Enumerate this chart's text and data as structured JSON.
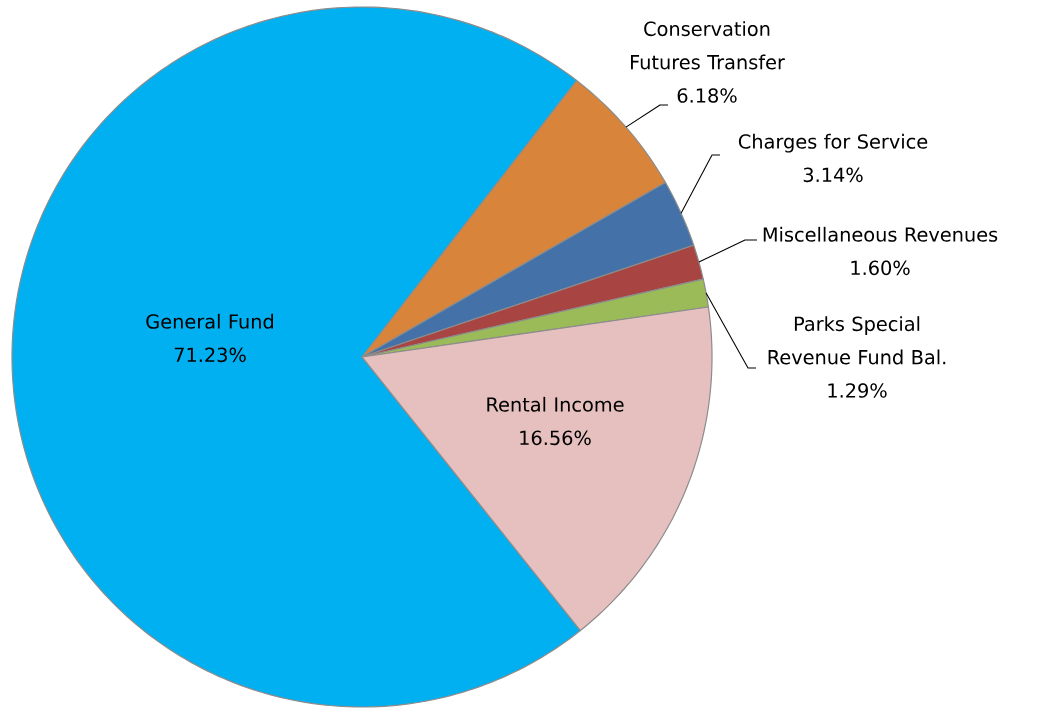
{
  "chart_data": {
    "type": "pie",
    "categories": [
      "General Fund",
      "Conservation Futures Transfer",
      "Charges for Service",
      "Miscellaneous Revenues",
      "Parks Special Revenue Fund Bal.",
      "Rental Income"
    ],
    "values": [
      71.23,
      6.18,
      3.14,
      1.6,
      1.29,
      16.56
    ],
    "value_labels": [
      "71.23%",
      "6.18%",
      "3.14%",
      "1.60%",
      "1.29%",
      "16.56%"
    ],
    "colors": [
      "#00b0f0",
      "#d9843b",
      "#4472a8",
      "#a84442",
      "#9bbb59",
      "#e6bfbf"
    ]
  }
}
